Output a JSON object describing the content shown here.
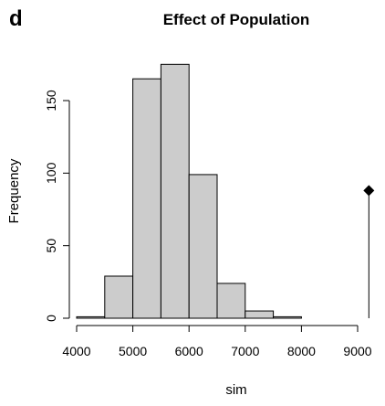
{
  "chart_data": {
    "type": "bar",
    "panel_letter": "d",
    "title": "Effect of Population",
    "xlabel": "sim",
    "ylabel": "Frequency",
    "xlim": [
      4000,
      9000
    ],
    "ylim": [
      0,
      175
    ],
    "x_ticks": [
      4000,
      5000,
      6000,
      7000,
      8000,
      9000
    ],
    "y_ticks": [
      0,
      50,
      100,
      150
    ],
    "bin_edges": [
      4000,
      4500,
      5000,
      5500,
      6000,
      6500,
      7000,
      7500,
      8000
    ],
    "counts": [
      1,
      29,
      165,
      175,
      99,
      24,
      5,
      1
    ],
    "bar_color": "#cccccc",
    "observed": {
      "x": 9200,
      "y": 88,
      "marker": "filled-diamond"
    },
    "grid": false
  }
}
